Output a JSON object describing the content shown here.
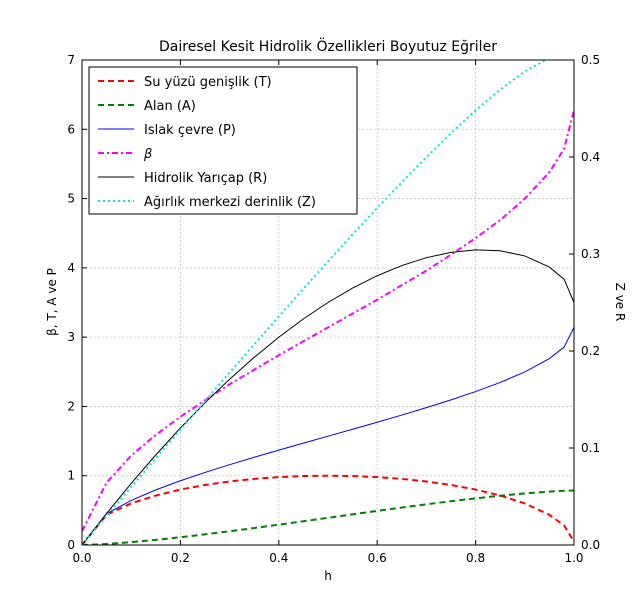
{
  "chart_data": {
    "type": "line",
    "title": "Dairesel Kesit Hidrolik Özellikleri Boyutuz Eğriler",
    "xlabel": "h",
    "ylabel_left": "β, T, A ve P",
    "ylabel_right": "Z ve R",
    "xlim": [
      0,
      1
    ],
    "ylim_left": [
      0,
      7
    ],
    "ylim_right": [
      0,
      0.5
    ],
    "x_ticks": [
      "0.0",
      "0.2",
      "0.4",
      "0.6",
      "0.8",
      "1.0"
    ],
    "y_left_ticks": [
      "0",
      "1",
      "2",
      "3",
      "4",
      "5",
      "6",
      "7"
    ],
    "y_right_ticks": [
      "0.0",
      "0.1",
      "0.2",
      "0.3",
      "0.4",
      "0.5"
    ],
    "grid": true,
    "legend_position": "top-left",
    "x": [
      0.0,
      0.05,
      0.1,
      0.15,
      0.2,
      0.25,
      0.3,
      0.35,
      0.4,
      0.45,
      0.5,
      0.55,
      0.6,
      0.65,
      0.7,
      0.75,
      0.8,
      0.85,
      0.9,
      0.95,
      0.98,
      1.0
    ],
    "series": [
      {
        "name": "Su yüzü genişlik (T)",
        "axis": "left",
        "color": "#ff0000",
        "style": "dashed",
        "values": [
          0.0,
          0.436,
          0.6,
          0.714,
          0.8,
          0.866,
          0.917,
          0.954,
          0.98,
          0.995,
          1.0,
          0.995,
          0.98,
          0.954,
          0.917,
          0.866,
          0.8,
          0.714,
          0.6,
          0.436,
          0.28,
          0.05
        ]
      },
      {
        "name": "Alan (A)",
        "axis": "left",
        "color": "#008000",
        "style": "dashed",
        "values": [
          0.0,
          0.0147,
          0.0409,
          0.0739,
          0.1118,
          0.1535,
          0.1982,
          0.245,
          0.2934,
          0.3428,
          0.3927,
          0.4426,
          0.492,
          0.5404,
          0.5872,
          0.6319,
          0.6736,
          0.7115,
          0.7445,
          0.7707,
          0.7826,
          0.7854
        ]
      },
      {
        "name": "Islak çevre (P)",
        "axis": "left",
        "color": "#0000ff",
        "style": "solid",
        "values": [
          0.0,
          0.451,
          0.6435,
          0.7954,
          0.9273,
          1.0472,
          1.1593,
          1.2661,
          1.3694,
          1.4706,
          1.5708,
          1.671,
          1.7722,
          1.8755,
          1.9823,
          2.0944,
          2.2143,
          2.3462,
          2.4981,
          2.6906,
          2.8578,
          3.1416
        ]
      },
      {
        "name": "β",
        "axis": "left",
        "color": "#ff00ff",
        "style": "dashdot",
        "values": [
          0.2,
          0.9,
          1.29,
          1.59,
          1.85,
          2.09,
          2.32,
          2.53,
          2.74,
          2.94,
          3.14,
          3.34,
          3.54,
          3.75,
          3.96,
          4.19,
          4.43,
          4.69,
          5.0,
          5.38,
          5.72,
          6.28
        ]
      },
      {
        "name": "Hidrolik Yarıçap (R)",
        "axis": "right",
        "color": "#000000",
        "style": "solid",
        "values": [
          0.0,
          0.0326,
          0.0635,
          0.0929,
          0.1206,
          0.1466,
          0.1709,
          0.1935,
          0.2142,
          0.2331,
          0.25,
          0.2649,
          0.2776,
          0.2881,
          0.2962,
          0.3017,
          0.3042,
          0.3033,
          0.298,
          0.2865,
          0.2739,
          0.25
        ]
      },
      {
        "name": "Ağırlık merkezi derinlik (Z)",
        "axis": "right",
        "color": "#00e5e5",
        "style": "dotted",
        "values": [
          0.0,
          0.0299,
          0.0597,
          0.0895,
          0.119,
          0.1484,
          0.1777,
          0.2068,
          0.2356,
          0.2642,
          0.2924,
          0.3201,
          0.3474,
          0.374,
          0.3998,
          0.4246,
          0.448,
          0.4696,
          0.4883,
          0.5021,
          0.507,
          0.508
        ]
      }
    ]
  }
}
